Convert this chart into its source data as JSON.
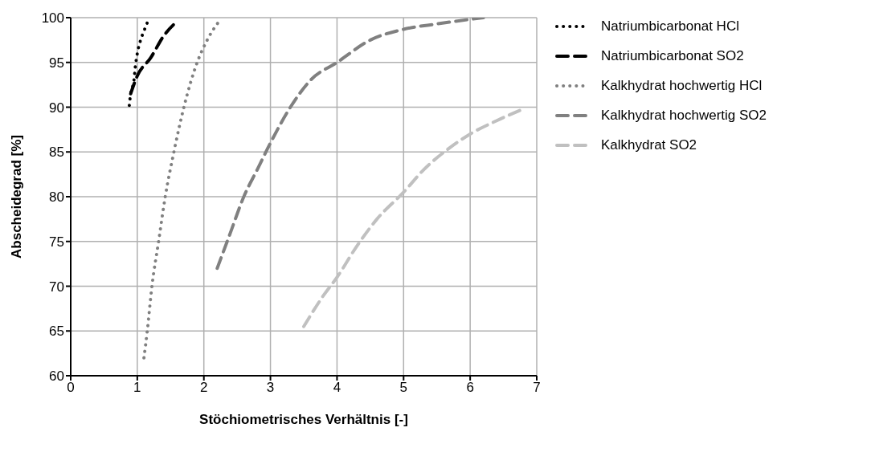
{
  "chart_data": {
    "type": "line",
    "xlabel": "Stöchiometrisches Verhältnis [-]",
    "ylabel": "Abscheidegrad [%]",
    "xlim": [
      0,
      7
    ],
    "xticks": [
      0,
      1,
      2,
      3,
      4,
      5,
      6,
      7
    ],
    "ylim": [
      60,
      100
    ],
    "yticks": [
      60,
      65,
      70,
      75,
      80,
      85,
      90,
      95,
      100
    ],
    "grid": true,
    "legend": "right",
    "marker": "none",
    "series": [
      {
        "name": "Natriumbicarbonat HCl",
        "color": "#000000",
        "line_style": "dotted",
        "x": [
          0.88,
          0.9,
          0.95,
          0.97,
          1.0,
          1.05,
          1.1,
          1.17
        ],
        "values": [
          90.2,
          91.5,
          93,
          94.5,
          96,
          97.5,
          98.5,
          99.8
        ]
      },
      {
        "name": "Natriumbicarbonat SO2",
        "color": "#000000",
        "line_style": "dashed",
        "x": [
          0.9,
          1.0,
          1.2,
          1.4,
          1.6
        ],
        "values": [
          91.5,
          93.5,
          95.5,
          98,
          99.6
        ]
      },
      {
        "name": "Kalkhydrat hochwertig HCl",
        "color": "#808080",
        "line_style": "dotted",
        "x": [
          1.1,
          1.15,
          1.22,
          1.32,
          1.42,
          1.55,
          1.7,
          1.9,
          2.05,
          2.25
        ],
        "values": [
          62,
          65,
          70,
          75,
          80,
          85,
          90,
          95,
          97.5,
          99.8
        ]
      },
      {
        "name": "Kalkhydrat hochwertig SO2",
        "color": "#808080",
        "line_style": "dashed",
        "x": [
          2.2,
          2.4,
          2.6,
          2.8,
          3.0,
          3.3,
          3.6,
          4.0,
          4.5,
          5.0,
          5.5,
          6.2
        ],
        "values": [
          72,
          76,
          80,
          83,
          86,
          90,
          93,
          95,
          97.5,
          98.7,
          99.3,
          100
        ]
      },
      {
        "name": "Kalkhydrat SO2",
        "color": "#c0c0c0",
        "line_style": "dashed",
        "x": [
          3.5,
          3.8,
          4.0,
          4.3,
          4.6,
          5.0,
          5.3,
          5.7,
          6.0,
          6.4,
          6.8
        ],
        "values": [
          65.5,
          69,
          71,
          74.5,
          77.5,
          80.5,
          83,
          85.5,
          87,
          88.5,
          89.8
        ]
      }
    ]
  }
}
